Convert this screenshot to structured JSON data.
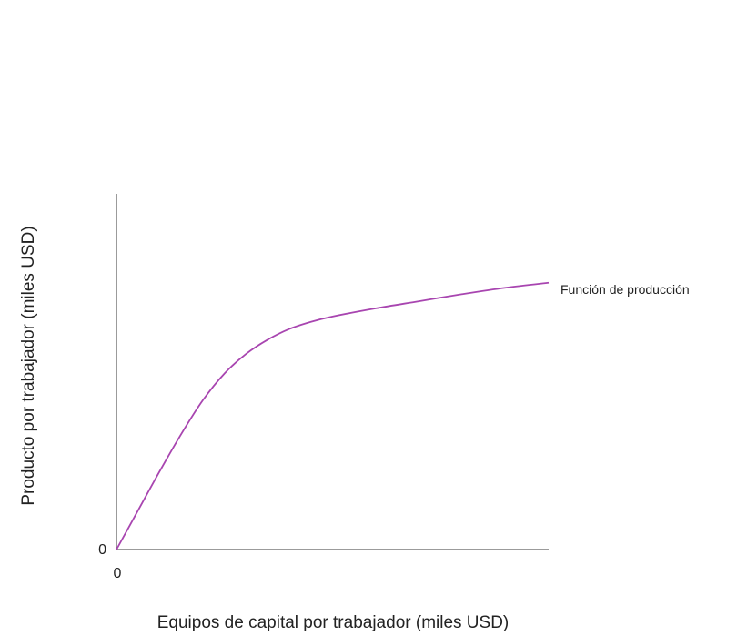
{
  "chart_data": {
    "type": "line",
    "title": "",
    "xlabel": "Equipos de capital por trabajador (miles USD)",
    "ylabel": "Producto por trabajador (miles USD)",
    "x_tick_labels": [
      "0"
    ],
    "y_tick_labels": [
      "0"
    ],
    "xlim": [
      0,
      100
    ],
    "ylim": [
      0,
      100
    ],
    "grid": false,
    "series": [
      {
        "name": "Función de producción",
        "color": "#a845b0",
        "x": [
          0,
          5,
          10,
          15,
          20,
          25,
          30,
          35,
          40,
          45,
          50,
          60,
          70,
          80,
          90,
          100
        ],
        "y": [
          0,
          11,
          22,
          32.5,
          42,
          49.5,
          55,
          59,
          62,
          64,
          65.5,
          67.8,
          69.8,
          71.8,
          73.6,
          75
        ]
      }
    ]
  }
}
